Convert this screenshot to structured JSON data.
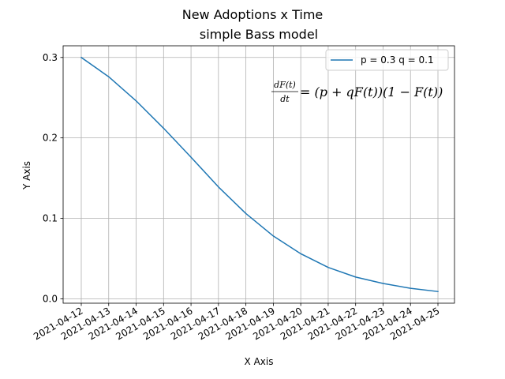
{
  "chart_data": {
    "type": "line",
    "title": "New Adoptions x Time",
    "subtitle": "simple Bass model",
    "xlabel": "X Axis",
    "ylabel": "Y Axis",
    "x": [
      "2021-04-12",
      "2021-04-13",
      "2021-04-14",
      "2021-04-15",
      "2021-04-16",
      "2021-04-17",
      "2021-04-18",
      "2021-04-19",
      "2021-04-20",
      "2021-04-21",
      "2021-04-22",
      "2021-04-23",
      "2021-04-24",
      "2021-04-25"
    ],
    "series": [
      {
        "name": "p = 0.3 q = 0.1",
        "color": "#1f77b4",
        "values": [
          0.3,
          0.276,
          0.246,
          0.212,
          0.176,
          0.139,
          0.106,
          0.078,
          0.056,
          0.039,
          0.027,
          0.019,
          0.013,
          0.009
        ]
      }
    ],
    "ylim": [
      -0.0055,
      0.3145
    ],
    "yticks": [
      0.0,
      0.1,
      0.2,
      0.3
    ],
    "ytick_labels": [
      "0.0",
      "0.1",
      "0.2",
      "0.3"
    ],
    "grid": true,
    "legend_position": "upper right",
    "annotation": {
      "lhs_numerator": "dF(t)",
      "lhs_denominator": "dt",
      "rhs": "= (p + qF(t))(1 − F(t))"
    }
  }
}
